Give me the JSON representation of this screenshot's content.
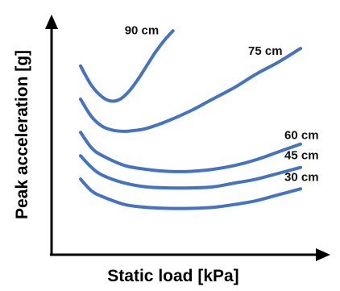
{
  "chart_data": {
    "type": "line",
    "title": "",
    "xlabel": "Static load [kPa]",
    "ylabel": "Peak acceleration [g]",
    "xlim": [
      0,
      100
    ],
    "ylim": [
      0,
      100
    ],
    "show_ticks": false,
    "grid": false,
    "legend": "none",
    "line_color": "#4472C4",
    "axis_color": "#000000",
    "series": [
      {
        "name": "90 cm",
        "x": [
          0,
          5,
          10,
          14,
          18,
          22,
          26,
          30,
          34,
          38,
          42
        ],
        "y": [
          86,
          76,
          70,
          68,
          69,
          73,
          79,
          86,
          93,
          99,
          104
        ]
      },
      {
        "name": "75 cm",
        "x": [
          0,
          5,
          10,
          15,
          20,
          25,
          30,
          40,
          50,
          60,
          70,
          80,
          90,
          100
        ],
        "y": [
          69,
          60,
          55,
          53,
          52.5,
          53,
          54,
          58,
          63,
          69,
          75,
          82,
          88,
          95
        ]
      },
      {
        "name": "60 cm",
        "x": [
          0,
          5,
          10,
          20,
          30,
          40,
          50,
          60,
          70,
          80,
          90,
          100
        ],
        "y": [
          52,
          44,
          40,
          35,
          33,
          32,
          32,
          33,
          35,
          38,
          42,
          46
        ]
      },
      {
        "name": "45 cm",
        "x": [
          0,
          5,
          10,
          20,
          30,
          40,
          50,
          60,
          70,
          80,
          90,
          100
        ],
        "y": [
          40,
          34,
          30,
          26,
          24,
          23.5,
          23.5,
          24,
          26,
          28,
          31,
          34
        ]
      },
      {
        "name": "30 cm",
        "x": [
          0,
          5,
          10,
          20,
          30,
          40,
          50,
          60,
          70,
          80,
          90,
          100
        ],
        "y": [
          28,
          22,
          19,
          15,
          13.5,
          13,
          13,
          13.5,
          15,
          17,
          20,
          23
        ]
      }
    ]
  }
}
